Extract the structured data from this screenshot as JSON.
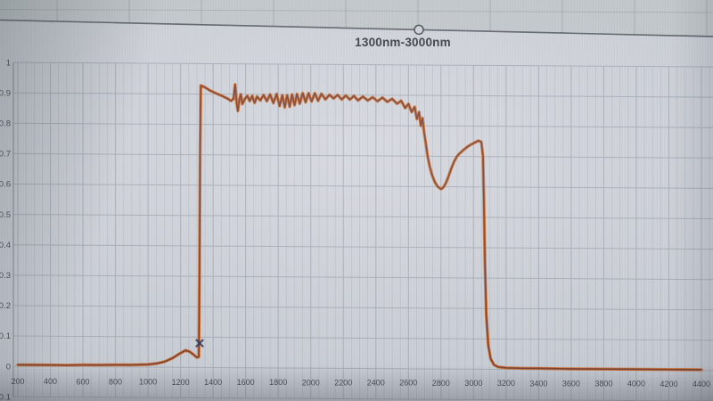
{
  "colors": {
    "screen_background": "#cbcfd7",
    "plot_gridline_major": "#a9aeb9",
    "plot_gridline_minor": "#b9bec8",
    "axis_line": "#8f95a0",
    "chart_border_line": "#51565e",
    "tick_label_text": "#4b5058",
    "title_text": "#3b4047",
    "trace_orange": "#d9752e",
    "trace_dark_red": "#7e4034",
    "trace_green": "#7f8c45",
    "selection_marker_blue": "#323e68"
  },
  "chart_data": {
    "type": "line",
    "title": "1300nm-3000nm",
    "xlabel": "",
    "ylabel": "",
    "x_unit": "nm",
    "xlim": [
      200,
      4400
    ],
    "ylim": [
      -0.1,
      1.0
    ],
    "grid": "horizontal major every 0.1; vertical major every 200nm with faint minor lines every 50nm",
    "legend_position": "none",
    "x_ticks": [
      200,
      400,
      600,
      800,
      1000,
      1200,
      1400,
      1600,
      1800,
      2000,
      2200,
      2400,
      2600,
      2800,
      3000,
      3200,
      3400,
      3600,
      3800,
      4000,
      4200,
      4400
    ],
    "y_ticks": [
      -0.1,
      0,
      0.1,
      0.2,
      0.3,
      0.4,
      0.5,
      0.6,
      0.7,
      0.8,
      0.9,
      1.0
    ],
    "y_tick_labels": [
      "-0.1",
      "0",
      "0.1",
      "0.2",
      "0.3",
      "0.4",
      "0.5",
      "0.6",
      "0.7",
      "0.8",
      "0.9",
      "1"
    ],
    "series": [
      {
        "name": "transmission-trace-orange",
        "color": "#d9752e",
        "stroke_width": 3.4,
        "shares_points": true
      },
      {
        "name": "transmission-trace-dark-red",
        "color": "#7e4034",
        "stroke_width": 1.7,
        "shares_points": true
      }
    ],
    "points": [
      [
        200,
        0.005
      ],
      [
        300,
        0.005
      ],
      [
        400,
        0.005
      ],
      [
        500,
        0.005
      ],
      [
        600,
        0.006
      ],
      [
        700,
        0.006
      ],
      [
        800,
        0.007
      ],
      [
        900,
        0.007
      ],
      [
        1000,
        0.009
      ],
      [
        1050,
        0.012
      ],
      [
        1100,
        0.018
      ],
      [
        1150,
        0.03
      ],
      [
        1200,
        0.047
      ],
      [
        1230,
        0.056
      ],
      [
        1255,
        0.052
      ],
      [
        1280,
        0.042
      ],
      [
        1300,
        0.033
      ],
      [
        1312,
        0.035
      ],
      [
        1316,
        0.3
      ],
      [
        1320,
        0.7
      ],
      [
        1324,
        0.928
      ],
      [
        1350,
        0.922
      ],
      [
        1380,
        0.912
      ],
      [
        1420,
        0.902
      ],
      [
        1460,
        0.893
      ],
      [
        1490,
        0.885
      ],
      [
        1510,
        0.878
      ],
      [
        1525,
        0.885
      ],
      [
        1535,
        0.932
      ],
      [
        1545,
        0.87
      ],
      [
        1552,
        0.845
      ],
      [
        1560,
        0.88
      ],
      [
        1570,
        0.9
      ],
      [
        1580,
        0.868
      ],
      [
        1595,
        0.885
      ],
      [
        1610,
        0.895
      ],
      [
        1625,
        0.878
      ],
      [
        1640,
        0.895
      ],
      [
        1655,
        0.872
      ],
      [
        1670,
        0.893
      ],
      [
        1690,
        0.88
      ],
      [
        1710,
        0.898
      ],
      [
        1730,
        0.878
      ],
      [
        1750,
        0.9
      ],
      [
        1770,
        0.872
      ],
      [
        1790,
        0.902
      ],
      [
        1808,
        0.862
      ],
      [
        1825,
        0.898
      ],
      [
        1840,
        0.858
      ],
      [
        1855,
        0.898
      ],
      [
        1870,
        0.86
      ],
      [
        1885,
        0.9
      ],
      [
        1900,
        0.865
      ],
      [
        1915,
        0.902
      ],
      [
        1932,
        0.87
      ],
      [
        1950,
        0.905
      ],
      [
        1968,
        0.875
      ],
      [
        1986,
        0.905
      ],
      [
        2005,
        0.878
      ],
      [
        2025,
        0.905
      ],
      [
        2045,
        0.88
      ],
      [
        2065,
        0.903
      ],
      [
        2090,
        0.885
      ],
      [
        2115,
        0.9
      ],
      [
        2140,
        0.888
      ],
      [
        2165,
        0.9
      ],
      [
        2190,
        0.885
      ],
      [
        2215,
        0.898
      ],
      [
        2240,
        0.885
      ],
      [
        2265,
        0.897
      ],
      [
        2290,
        0.882
      ],
      [
        2320,
        0.895
      ],
      [
        2350,
        0.882
      ],
      [
        2380,
        0.893
      ],
      [
        2410,
        0.88
      ],
      [
        2440,
        0.892
      ],
      [
        2470,
        0.878
      ],
      [
        2500,
        0.888
      ],
      [
        2530,
        0.872
      ],
      [
        2555,
        0.882
      ],
      [
        2580,
        0.858
      ],
      [
        2600,
        0.872
      ],
      [
        2620,
        0.845
      ],
      [
        2638,
        0.862
      ],
      [
        2652,
        0.822
      ],
      [
        2665,
        0.845
      ],
      [
        2676,
        0.8
      ],
      [
        2686,
        0.825
      ],
      [
        2696,
        0.78
      ],
      [
        2706,
        0.745
      ],
      [
        2718,
        0.7
      ],
      [
        2730,
        0.668
      ],
      [
        2745,
        0.638
      ],
      [
        2762,
        0.615
      ],
      [
        2780,
        0.6
      ],
      [
        2800,
        0.592
      ],
      [
        2815,
        0.598
      ],
      [
        2830,
        0.612
      ],
      [
        2845,
        0.632
      ],
      [
        2862,
        0.658
      ],
      [
        2880,
        0.682
      ],
      [
        2898,
        0.7
      ],
      [
        2915,
        0.71
      ],
      [
        2935,
        0.72
      ],
      [
        2958,
        0.73
      ],
      [
        2980,
        0.738
      ],
      [
        3005,
        0.745
      ],
      [
        3030,
        0.752
      ],
      [
        3048,
        0.748
      ],
      [
        3058,
        0.7
      ],
      [
        3064,
        0.55
      ],
      [
        3070,
        0.35
      ],
      [
        3078,
        0.18
      ],
      [
        3090,
        0.08
      ],
      [
        3105,
        0.035
      ],
      [
        3125,
        0.015
      ],
      [
        3150,
        0.008
      ],
      [
        3200,
        0.005
      ],
      [
        3300,
        0.004
      ],
      [
        3400,
        0.004
      ],
      [
        3600,
        0.003
      ],
      [
        3800,
        0.003
      ],
      [
        4000,
        0.003
      ],
      [
        4200,
        0.003
      ],
      [
        4400,
        0.003
      ]
    ],
    "low_bump_trace": {
      "name": "transmission-trace-green",
      "color": "#7f8c45",
      "points": [
        [
          1060,
          0.012
        ],
        [
          1110,
          0.022
        ],
        [
          1160,
          0.035
        ],
        [
          1205,
          0.05
        ],
        [
          1235,
          0.058
        ],
        [
          1262,
          0.05
        ],
        [
          1285,
          0.04
        ],
        [
          1300,
          0.034
        ]
      ]
    },
    "selected_point_marker": {
      "x_nm": 1317,
      "y_value": 0.08,
      "color": "#323e68",
      "shape": "x"
    }
  },
  "chart_frame": {
    "title": "1300nm-3000nm",
    "handle": "circle-resize-handle-on-top-border"
  }
}
